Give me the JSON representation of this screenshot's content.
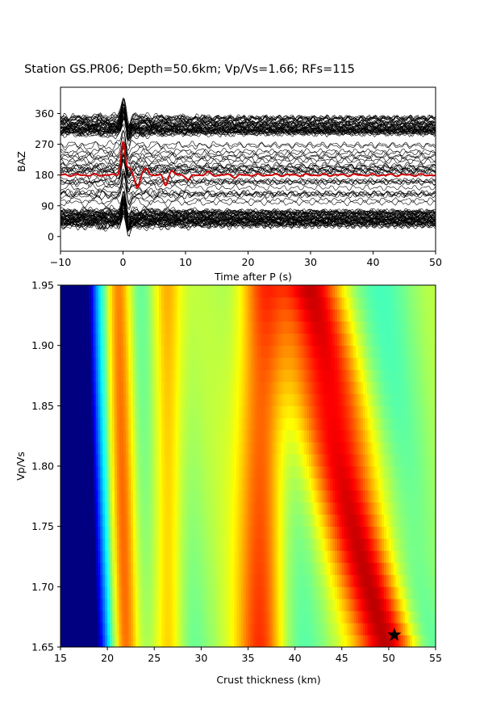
{
  "title": "Station GS.PR06; Depth=50.6km; Vp/Vs=1.66; RFs=115",
  "chart_data": [
    {
      "type": "line",
      "panel": "receiver-functions",
      "xlabel": "Time after P (s)",
      "ylabel": "BAZ",
      "xlim": [
        -10,
        50
      ],
      "ylim": [
        -43,
        437
      ],
      "x_ticks": [
        "−10",
        "0",
        "10",
        "20",
        "30",
        "40",
        "50"
      ],
      "x_tick_values": [
        -10,
        0,
        10,
        20,
        30,
        40,
        50
      ],
      "y_ticks": [
        "0",
        "90",
        "180",
        "270",
        "360"
      ],
      "y_tick_values": [
        0,
        90,
        180,
        270,
        360
      ],
      "trace_count": 115,
      "trace_color": "#000000",
      "stack_color": "#d00000",
      "stack_baseline": 180,
      "stack_peaks": [
        {
          "t": 0.0,
          "a": 95
        },
        {
          "t": 1.0,
          "a": 20
        },
        {
          "t": 2.3,
          "a": -35
        },
        {
          "t": 3.7,
          "a": 20
        },
        {
          "t": 6.8,
          "a": -28
        },
        {
          "t": 7.8,
          "a": 12
        },
        {
          "t": 10.5,
          "a": -14
        },
        {
          "t": 13.5,
          "a": 8
        },
        {
          "t": 18.0,
          "a": -6
        }
      ]
    },
    {
      "type": "heatmap",
      "panel": "h-kappa-stack",
      "xlabel": "Crust thickness (km)",
      "ylabel": "Vp/Vs",
      "xlim": [
        15,
        55
      ],
      "ylim": [
        1.65,
        1.95
      ],
      "x_ticks": [
        "15",
        "20",
        "25",
        "30",
        "35",
        "40",
        "45",
        "50",
        "55"
      ],
      "x_tick_values": [
        15,
        20,
        25,
        30,
        35,
        40,
        45,
        50,
        55
      ],
      "y_ticks": [
        "1.65",
        "1.70",
        "1.75",
        "1.80",
        "1.85",
        "1.90",
        "1.95"
      ],
      "y_tick_values": [
        1.65,
        1.7,
        1.75,
        1.8,
        1.85,
        1.9,
        1.95
      ],
      "colormap": "jet",
      "best_fit": {
        "H": 50.6,
        "k": 1.66
      },
      "marker_color": "#000000"
    }
  ]
}
